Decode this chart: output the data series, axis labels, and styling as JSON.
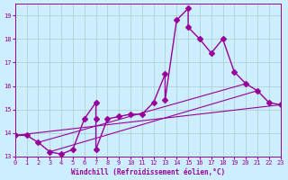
{
  "background_color": "#cceeff",
  "grid_color": "#aacccc",
  "line_color": "#990099",
  "marker": "D",
  "marker_size": 3,
  "line_width": 1.0,
  "xlabel": "Windchill (Refroidissement éolien,°C)",
  "xlim": [
    0,
    23
  ],
  "ylim": [
    13,
    19.5
  ],
  "yticks": [
    13,
    14,
    15,
    16,
    17,
    18,
    19
  ],
  "xticks": [
    0,
    1,
    2,
    3,
    4,
    5,
    6,
    7,
    8,
    9,
    10,
    11,
    12,
    13,
    14,
    15,
    16,
    17,
    18,
    19,
    20,
    21,
    22,
    23
  ],
  "series": [
    [
      0,
      13.9
    ],
    [
      1,
      13.9
    ],
    [
      2,
      13.6
    ],
    [
      3,
      13.2
    ],
    [
      4,
      13.1
    ],
    [
      5,
      13.3
    ],
    [
      6,
      14.6
    ],
    [
      7,
      15.3
    ],
    [
      7,
      14.6
    ],
    [
      7,
      13.3
    ],
    [
      8,
      14.6
    ],
    [
      9,
      14.7
    ],
    [
      10,
      14.8
    ],
    [
      11,
      14.8
    ],
    [
      12,
      15.3
    ],
    [
      13,
      16.5
    ],
    [
      13,
      15.4
    ],
    [
      14,
      18.8
    ],
    [
      15,
      19.3
    ],
    [
      15,
      18.5
    ],
    [
      16,
      18.0
    ],
    [
      17,
      17.4
    ],
    [
      18,
      18.0
    ],
    [
      19,
      16.6
    ],
    [
      20,
      16.1
    ],
    [
      21,
      15.8
    ],
    [
      22,
      15.3
    ],
    [
      23,
      15.2
    ]
  ],
  "line2": [
    [
      0,
      13.9
    ],
    [
      23,
      15.2
    ]
  ],
  "line3": [
    [
      2,
      13.6
    ],
    [
      20,
      16.1
    ]
  ],
  "line4": [
    [
      3,
      13.2
    ],
    [
      21,
      15.8
    ]
  ]
}
